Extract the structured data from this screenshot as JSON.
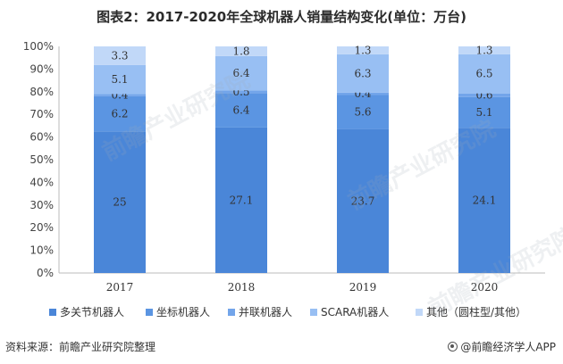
{
  "title": "图表2：2017-2020年全球机器人销量结构变化(单位：万台)",
  "source_label": "资料来源：前瞻产业研究院整理",
  "brand_label": "@前瞻经济学人APP",
  "watermark_text": "前瞻产业研究院",
  "colors": {
    "multi_joint": "#4a86d8",
    "coordinate": "#5b95e2",
    "parallel": "#73a5ea",
    "scara": "#98bff3",
    "other": "#c1d8f8"
  },
  "chart_data": {
    "type": "bar",
    "stacked": "percent",
    "title": "图表2：2017-2020年全球机器人销量结构变化(单位：万台)",
    "categories": [
      "2017",
      "2018",
      "2019",
      "2020"
    ],
    "series": [
      {
        "name": "多关节机器人",
        "values": [
          25,
          27.1,
          23.7,
          24.1
        ]
      },
      {
        "name": "坐标机器人",
        "values": [
          6.2,
          6.4,
          5.6,
          5.1
        ]
      },
      {
        "name": "并联机器人",
        "values": [
          0.4,
          0.5,
          0.4,
          0.6
        ]
      },
      {
        "name": "SCARA机器人",
        "values": [
          5.1,
          6.4,
          6.3,
          6.5
        ]
      },
      {
        "name": "其他（圆柱型/其他）",
        "values": [
          3.3,
          1.8,
          1.3,
          1.3
        ]
      }
    ],
    "y_ticks": [
      "0%",
      "10%",
      "20%",
      "30%",
      "40%",
      "50%",
      "60%",
      "70%",
      "80%",
      "90%",
      "100%"
    ],
    "ylim": [
      0,
      100
    ],
    "legend_position": "bottom",
    "grid": false
  }
}
